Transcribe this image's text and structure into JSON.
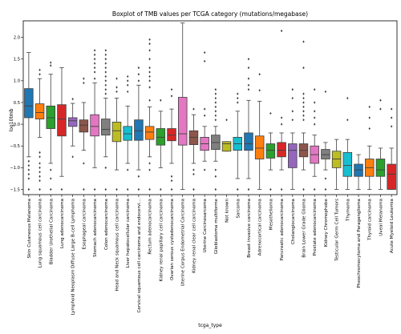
{
  "chart_data": {
    "type": "box",
    "title": "Boxplot of TMB values per TCGA category (mutations/megabase)",
    "xlabel": "tcga_type",
    "ylabel": "log10tmb",
    "ylim": [
      -1.62,
      2.38
    ],
    "yticks": [
      -1.5,
      -1.0,
      -0.5,
      0.0,
      0.5,
      1.0,
      1.5,
      2.0
    ],
    "ytick_labels": [
      "−1.5",
      "−1.0",
      "−0.5",
      "0.0",
      "0.5",
      "1.0",
      "1.5",
      "2.0"
    ],
    "grid": false,
    "categories": [
      {
        "name": "Skin Cutaneous Melanoma",
        "color": "#1f77b4",
        "q1": 0.15,
        "median": 0.42,
        "q3": 0.82,
        "whislo": -0.75,
        "whishi": 1.65,
        "fliers": [
          -0.85,
          -0.95,
          -1.05,
          -1.15,
          -1.25,
          -1.5
        ]
      },
      {
        "name": "Lung squamous cell carcinoma",
        "color": "#ff7f0e",
        "q1": 0.12,
        "median": 0.27,
        "q3": 0.47,
        "whislo": -0.3,
        "whishi": 1.05,
        "fliers": [
          -0.65,
          -0.75,
          -0.9,
          -1.0,
          -1.1,
          -1.2,
          -1.3,
          -1.5,
          1.15,
          1.25
        ]
      },
      {
        "name": "Bladder Urothelial Carcinoma",
        "color": "#2ca02c",
        "q1": -0.1,
        "median": 0.15,
        "q3": 0.42,
        "whislo": -0.9,
        "whishi": 1.15,
        "fliers": [
          -1.05,
          -1.25,
          -1.5,
          1.35,
          1.42
        ]
      },
      {
        "name": "Lung adenocarcinoma",
        "color": "#d62728",
        "q1": -0.27,
        "median": 0.12,
        "q3": 0.45,
        "whislo": -1.2,
        "whishi": 1.3,
        "fliers": [
          -1.5
        ]
      },
      {
        "name": "Lymphoid Neoplasm Diffuse Large B-cell Lymphoma",
        "color": "#9467bd",
        "q1": -0.05,
        "median": 0.08,
        "q3": 0.15,
        "whislo": -0.5,
        "whishi": 0.48,
        "fliers": [
          -0.75,
          0.58
        ]
      },
      {
        "name": "Esophageal carcinoma",
        "color": "#8c564b",
        "q1": -0.18,
        "median": -0.02,
        "q3": 0.1,
        "whislo": -0.6,
        "whishi": 0.5,
        "fliers": [
          -0.9,
          -1.5,
          0.95,
          1.05
        ]
      },
      {
        "name": "Stomach adenocarcinoma",
        "color": "#e377c2",
        "q1": -0.27,
        "median": -0.05,
        "q3": 0.22,
        "whislo": -1.0,
        "whishi": 0.95,
        "fliers": [
          -1.5,
          1.05,
          1.2,
          1.3,
          1.4,
          1.5,
          1.6,
          1.7
        ]
      },
      {
        "name": "Colon adenocarcinoma",
        "color": "#7f7f7f",
        "q1": -0.25,
        "median": -0.12,
        "q3": 0.12,
        "whislo": -0.75,
        "whishi": 0.6,
        "fliers": [
          -1.0,
          -1.5,
          0.7,
          0.8,
          0.9,
          1.0,
          1.1,
          1.2,
          1.3,
          1.4,
          1.5,
          1.6,
          1.7
        ]
      },
      {
        "name": "Head and Neck squamous cell carcinoma",
        "color": "#bcbd22",
        "q1": -0.4,
        "median": -0.15,
        "q3": 0.05,
        "whislo": -1.05,
        "whishi": 0.6,
        "fliers": [
          -1.5,
          0.75,
          0.85,
          1.05
        ]
      },
      {
        "name": "Liver hepatocellular carcinoma",
        "color": "#17becf",
        "q1": -0.37,
        "median": -0.22,
        "q3": -0.05,
        "whislo": -0.9,
        "whishi": 0.42,
        "fliers": [
          -1.05,
          -1.5,
          0.75,
          0.9,
          1.0,
          1.1
        ]
      },
      {
        "name": "Cervical squamous cell carcinoma and endocervi...",
        "color": "#1f77b4",
        "q1": -0.37,
        "median": -0.15,
        "q3": 0.1,
        "whislo": -1.05,
        "whishi": 0.9,
        "fliers": [
          -1.2,
          -1.5,
          1.0,
          1.15,
          1.3
        ]
      },
      {
        "name": "Rectum adenocarcinoma",
        "color": "#ff7f0e",
        "q1": -0.35,
        "median": -0.18,
        "q3": -0.05,
        "whislo": -0.75,
        "whishi": 0.4,
        "fliers": [
          -0.9,
          -1.05,
          -1.5,
          0.55,
          0.85,
          1.0,
          1.1,
          1.2,
          1.3,
          1.5,
          1.7,
          1.85,
          1.95
        ]
      },
      {
        "name": "Kidney renal papillary cell carcinoma",
        "color": "#2ca02c",
        "q1": -0.48,
        "median": -0.3,
        "q3": -0.1,
        "whislo": -1.0,
        "whishi": 0.3,
        "fliers": [
          -1.5,
          0.55
        ]
      },
      {
        "name": "Ovarian serous cystadenocarcinoma",
        "color": "#d62728",
        "q1": -0.38,
        "median": -0.25,
        "q3": -0.1,
        "whislo": -0.9,
        "whishi": 0.35,
        "fliers": [
          -1.2,
          -1.3,
          -1.5,
          0.65,
          0.8
        ]
      },
      {
        "name": "Uterine Corpus Endometrial Carcinoma",
        "color": "#e377c2",
        "q1": -0.48,
        "median": -0.22,
        "q3": 0.62,
        "whislo": -1.5,
        "whishi": 2.33,
        "fliers": []
      },
      {
        "name": "Kidney renal clear cell carcinoma",
        "color": "#8c564b",
        "q1": -0.47,
        "median": -0.3,
        "q3": -0.15,
        "whislo": -0.9,
        "whishi": 0.22,
        "fliers": [
          -1.05,
          -1.15,
          -1.5,
          0.35
        ]
      },
      {
        "name": "Uterine Carcinosarcoma",
        "color": "#e377c2",
        "q1": -0.6,
        "median": -0.45,
        "q3": -0.3,
        "whislo": -0.85,
        "whishi": -0.05,
        "fliers": [
          -1.05,
          0.2,
          0.35,
          1.45,
          1.65
        ]
      },
      {
        "name": "Glioblastoma multiforme",
        "color": "#7f7f7f",
        "q1": -0.58,
        "median": -0.42,
        "q3": -0.25,
        "whislo": -0.85,
        "whishi": -0.05,
        "fliers": [
          -1.05,
          -1.2,
          -1.5,
          0.1,
          0.2,
          0.3,
          0.4,
          0.5,
          0.6,
          0.7,
          0.8
        ]
      },
      {
        "name": "Not known",
        "color": "#bcbd22",
        "q1": -0.62,
        "median": -0.45,
        "q3": -0.4,
        "whislo": -0.62,
        "whishi": -0.4,
        "fliers": [
          0.1
        ]
      },
      {
        "name": "Sarcoma",
        "color": "#17becf",
        "q1": -0.6,
        "median": -0.45,
        "q3": -0.3,
        "whislo": -1.25,
        "whishi": 0.3,
        "fliers": [
          -1.5,
          0.5,
          0.6,
          0.7
        ]
      },
      {
        "name": "Breast invasive carcinoma",
        "color": "#1f77b4",
        "q1": -0.6,
        "median": -0.45,
        "q3": -0.2,
        "whislo": -1.25,
        "whishi": 0.55,
        "fliers": [
          -1.5,
          0.8,
          0.9,
          1.05,
          1.3,
          1.5
        ]
      },
      {
        "name": "Adrenocortical carcinoma",
        "color": "#ff7f0e",
        "q1": -0.8,
        "median": -0.55,
        "q3": -0.27,
        "whislo": -1.5,
        "whishi": 0.53,
        "fliers": [
          0.78,
          1.15
        ]
      },
      {
        "name": "Mesothelioma",
        "color": "#2ca02c",
        "q1": -0.78,
        "median": -0.6,
        "q3": -0.45,
        "whislo": -1.05,
        "whishi": -0.2,
        "fliers": [
          -1.5,
          0.25
        ]
      },
      {
        "name": "Pancreatic adenocarcinoma",
        "color": "#d62728",
        "q1": -0.75,
        "median": -0.6,
        "q3": -0.42,
        "whislo": -1.05,
        "whishi": -0.2,
        "fliers": [
          -1.5,
          0.0,
          0.15,
          2.15
        ]
      },
      {
        "name": "Cholangiocarcinoma",
        "color": "#9467bd",
        "q1": -1.0,
        "median": -0.6,
        "q3": -0.45,
        "whislo": -1.5,
        "whishi": -0.2,
        "fliers": [
          0.1,
          0.3,
          0.6,
          0.8
        ]
      },
      {
        "name": "Brain Lower Grade Glioma",
        "color": "#8c564b",
        "q1": -0.75,
        "median": -0.6,
        "q3": -0.45,
        "whislo": -1.05,
        "whishi": -0.2,
        "fliers": [
          -1.5,
          0.1,
          0.2,
          0.3,
          0.4,
          0.5,
          0.6,
          0.7,
          1.3,
          1.9
        ]
      },
      {
        "name": "Prostate adenocarcinoma",
        "color": "#e377c2",
        "q1": -0.9,
        "median": -0.7,
        "q3": -0.5,
        "whislo": -1.2,
        "whishi": -0.25,
        "fliers": [
          -1.5,
          0.0,
          0.15,
          0.3,
          0.5,
          0.8
        ]
      },
      {
        "name": "Kidney Chromophobe",
        "color": "#7f7f7f",
        "q1": -0.8,
        "median": -0.7,
        "q3": -0.58,
        "whislo": -1.05,
        "whishi": -0.42,
        "fliers": [
          -1.25,
          -1.5,
          0.75
        ]
      },
      {
        "name": "Testicular Germ Cell Tumors",
        "color": "#bcbd22",
        "q1": -1.0,
        "median": -0.8,
        "q3": -0.62,
        "whislo": -1.5,
        "whishi": -0.35,
        "fliers": []
      },
      {
        "name": "Thymoma",
        "color": "#17becf",
        "q1": -1.2,
        "median": -0.95,
        "q3": -0.65,
        "whislo": -1.5,
        "whishi": -0.35,
        "fliers": [
          0.1,
          0.6
        ]
      },
      {
        "name": "Pheochromocytoma and Paraganglioma",
        "color": "#1f77b4",
        "q1": -1.2,
        "median": -1.05,
        "q3": -0.92,
        "whislo": -1.5,
        "whishi": -0.7,
        "fliers": []
      },
      {
        "name": "Thyroid carcinoma",
        "color": "#ff7f0e",
        "q1": -1.2,
        "median": -1.0,
        "q3": -0.8,
        "whislo": -1.5,
        "whishi": -0.5,
        "fliers": [
          -0.1,
          0.15,
          0.4
        ]
      },
      {
        "name": "Uveal Melanoma",
        "color": "#2ca02c",
        "q1": -1.2,
        "median": -1.05,
        "q3": -0.8,
        "whislo": -1.5,
        "whishi": -0.55,
        "fliers": [
          0.35,
          0.55
        ]
      },
      {
        "name": "Acute Myeloid Leukemia",
        "color": "#d62728",
        "q1": -1.5,
        "median": -1.15,
        "q3": -0.92,
        "whislo": -1.5,
        "whishi": -0.55,
        "fliers": [
          -0.05,
          0.15,
          0.35
        ]
      }
    ]
  }
}
